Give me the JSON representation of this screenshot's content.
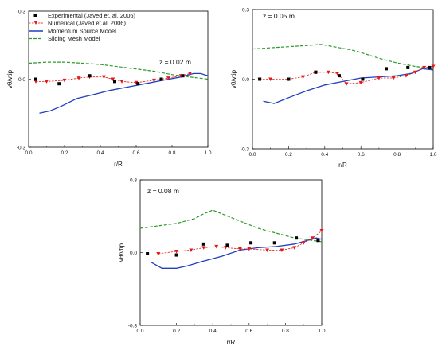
{
  "legend": [
    {
      "key": "experimental",
      "label": "Experimental (Javed et. al, 2006)"
    },
    {
      "key": "numerical",
      "label": "Numerical (Javed et.al, 2006)"
    },
    {
      "key": "momentum",
      "label": "Momentum Source Model"
    },
    {
      "key": "sliding",
      "label": "Sliding Mesh Model"
    }
  ],
  "colors": {
    "experimental": "#000000",
    "numerical": "#e31a1c",
    "momentum": "#1f3fbf",
    "sliding": "#2e9a2e"
  },
  "chart_data": [
    {
      "type": "line",
      "label": "z = 0.02 m",
      "xlabel": "r/R",
      "ylabel": "vθ/vtip",
      "xlim": [
        0,
        1.0
      ],
      "ylim": [
        -0.3,
        0.3
      ],
      "xticks": [
        "0.0",
        "0.2",
        "0.4",
        "0.6",
        "0.8",
        "1.0"
      ],
      "yticks": [
        "-0.3",
        "0.0",
        "0.3"
      ],
      "legend_position": "top-left",
      "series": {
        "experimental": [
          [
            0.04,
            0.0
          ],
          [
            0.17,
            -0.02
          ],
          [
            0.34,
            0.015
          ],
          [
            0.48,
            -0.01
          ],
          [
            0.61,
            -0.02
          ],
          [
            0.74,
            0.0
          ],
          [
            0.86,
            0.015
          ]
        ],
        "numerical": [
          [
            0.04,
            -0.01
          ],
          [
            0.1,
            -0.01
          ],
          [
            0.2,
            -0.005
          ],
          [
            0.28,
            0.005
          ],
          [
            0.34,
            0.01
          ],
          [
            0.42,
            0.01
          ],
          [
            0.47,
            0.0
          ],
          [
            0.52,
            -0.01
          ],
          [
            0.6,
            -0.015
          ],
          [
            0.7,
            -0.005
          ],
          [
            0.78,
            0.005
          ],
          [
            0.85,
            0.015
          ],
          [
            0.9,
            0.025
          ]
        ],
        "momentum": [
          [
            0.06,
            -0.15
          ],
          [
            0.12,
            -0.14
          ],
          [
            0.18,
            -0.12
          ],
          [
            0.27,
            -0.085
          ],
          [
            0.35,
            -0.07
          ],
          [
            0.45,
            -0.05
          ],
          [
            0.55,
            -0.035
          ],
          [
            0.65,
            -0.02
          ],
          [
            0.75,
            -0.005
          ],
          [
            0.85,
            0.01
          ],
          [
            0.92,
            0.025
          ],
          [
            0.96,
            0.025
          ],
          [
            1.0,
            0.015
          ]
        ],
        "sliding": [
          [
            0.0,
            0.07
          ],
          [
            0.1,
            0.075
          ],
          [
            0.2,
            0.075
          ],
          [
            0.3,
            0.07
          ],
          [
            0.4,
            0.065
          ],
          [
            0.5,
            0.055
          ],
          [
            0.6,
            0.045
          ],
          [
            0.7,
            0.035
          ],
          [
            0.8,
            0.02
          ],
          [
            0.9,
            0.01
          ],
          [
            1.0,
            0.0
          ]
        ]
      }
    },
    {
      "type": "line",
      "label": "z = 0.05 m",
      "xlabel": "r/R",
      "ylabel": "vθ/vtip",
      "xlim": [
        0,
        1.0
      ],
      "ylim": [
        -0.3,
        0.3
      ],
      "xticks": [
        "0.0",
        "0.2",
        "0.4",
        "0.6",
        "0.8",
        "1.0"
      ],
      "yticks": [
        "-0.3",
        "0.0",
        "0.3"
      ],
      "series": {
        "experimental": [
          [
            0.04,
            0.0
          ],
          [
            0.2,
            0.0
          ],
          [
            0.35,
            0.03
          ],
          [
            0.48,
            0.015
          ],
          [
            0.61,
            0.0
          ],
          [
            0.74,
            0.045
          ],
          [
            0.86,
            0.05
          ],
          [
            0.98,
            0.05
          ]
        ],
        "numerical": [
          [
            0.04,
            0.0
          ],
          [
            0.1,
            0.0
          ],
          [
            0.2,
            0.0
          ],
          [
            0.28,
            0.01
          ],
          [
            0.35,
            0.03
          ],
          [
            0.42,
            0.03
          ],
          [
            0.47,
            0.025
          ],
          [
            0.52,
            -0.02
          ],
          [
            0.6,
            -0.015
          ],
          [
            0.7,
            0.005
          ],
          [
            0.78,
            0.005
          ],
          [
            0.85,
            0.015
          ],
          [
            0.9,
            0.03
          ],
          [
            0.95,
            0.05
          ],
          [
            1.0,
            0.055
          ]
        ],
        "momentum": [
          [
            0.06,
            -0.095
          ],
          [
            0.12,
            -0.105
          ],
          [
            0.2,
            -0.08
          ],
          [
            0.3,
            -0.05
          ],
          [
            0.4,
            -0.025
          ],
          [
            0.5,
            -0.01
          ],
          [
            0.6,
            0.005
          ],
          [
            0.7,
            0.01
          ],
          [
            0.8,
            0.015
          ],
          [
            0.88,
            0.025
          ],
          [
            0.94,
            0.045
          ],
          [
            1.0,
            0.04
          ]
        ],
        "sliding": [
          [
            0.0,
            0.13
          ],
          [
            0.1,
            0.135
          ],
          [
            0.2,
            0.14
          ],
          [
            0.3,
            0.145
          ],
          [
            0.38,
            0.15
          ],
          [
            0.45,
            0.14
          ],
          [
            0.55,
            0.125
          ],
          [
            0.6,
            0.115
          ],
          [
            0.7,
            0.09
          ],
          [
            0.8,
            0.07
          ],
          [
            0.9,
            0.055
          ],
          [
            1.0,
            0.045
          ]
        ]
      }
    },
    {
      "type": "line",
      "label": "z = 0.08 m",
      "xlabel": "r/R",
      "ylabel": "vθ/vtip",
      "xlim": [
        0,
        1.0
      ],
      "ylim": [
        -0.3,
        0.3
      ],
      "xticks": [
        "0.0",
        "0.2",
        "0.4",
        "0.6",
        "0.8",
        "1.0"
      ],
      "yticks": [
        "-0.3",
        "0.0",
        "0.3"
      ],
      "series": {
        "experimental": [
          [
            0.04,
            -0.005
          ],
          [
            0.2,
            -0.01
          ],
          [
            0.35,
            0.035
          ],
          [
            0.48,
            0.03
          ],
          [
            0.61,
            0.04
          ],
          [
            0.74,
            0.04
          ],
          [
            0.86,
            0.06
          ],
          [
            0.98,
            0.05
          ]
        ],
        "numerical": [
          [
            0.1,
            -0.005
          ],
          [
            0.2,
            0.005
          ],
          [
            0.28,
            0.01
          ],
          [
            0.35,
            0.02
          ],
          [
            0.42,
            0.025
          ],
          [
            0.47,
            0.02
          ],
          [
            0.55,
            0.015
          ],
          [
            0.6,
            0.015
          ],
          [
            0.7,
            0.01
          ],
          [
            0.78,
            0.01
          ],
          [
            0.85,
            0.02
          ],
          [
            0.9,
            0.04
          ],
          [
            0.95,
            0.06
          ],
          [
            1.0,
            0.09
          ]
        ],
        "momentum": [
          [
            0.06,
            -0.04
          ],
          [
            0.12,
            -0.065
          ],
          [
            0.2,
            -0.065
          ],
          [
            0.26,
            -0.055
          ],
          [
            0.35,
            -0.035
          ],
          [
            0.45,
            -0.015
          ],
          [
            0.55,
            0.01
          ],
          [
            0.65,
            0.02
          ],
          [
            0.75,
            0.025
          ],
          [
            0.85,
            0.035
          ],
          [
            0.92,
            0.05
          ],
          [
            0.97,
            0.06
          ],
          [
            1.0,
            0.055
          ]
        ],
        "sliding": [
          [
            0.0,
            0.1
          ],
          [
            0.1,
            0.11
          ],
          [
            0.2,
            0.12
          ],
          [
            0.3,
            0.14
          ],
          [
            0.35,
            0.16
          ],
          [
            0.4,
            0.175
          ],
          [
            0.45,
            0.16
          ],
          [
            0.55,
            0.13
          ],
          [
            0.65,
            0.1
          ],
          [
            0.75,
            0.08
          ],
          [
            0.85,
            0.06
          ],
          [
            0.95,
            0.05
          ],
          [
            1.0,
            0.045
          ]
        ]
      }
    }
  ]
}
